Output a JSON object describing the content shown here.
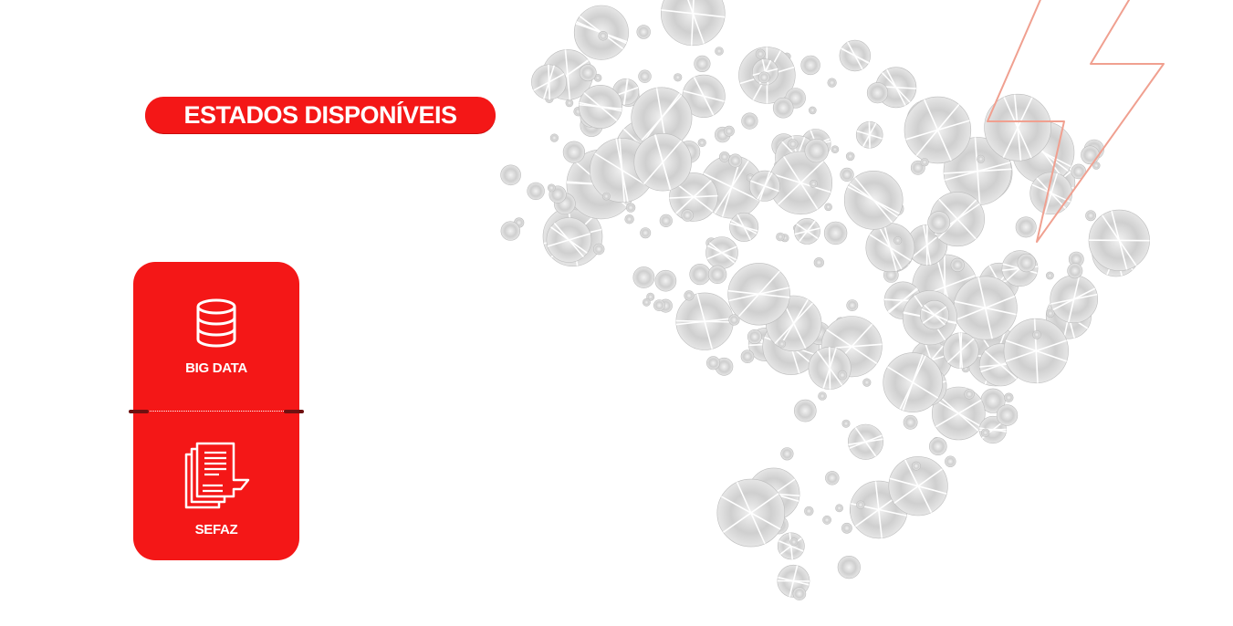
{
  "header": {
    "title": "ESTADOS DISPONÍVEIS"
  },
  "options": {
    "big_data": {
      "label": "BIG DATA",
      "icon": "database-icon"
    },
    "sefaz": {
      "label": "SEFAZ",
      "icon": "documents-icon"
    }
  },
  "colors": {
    "brand_red": "#f41717",
    "divider_cap": "#6e1010",
    "bolt_outline": "#f0a090",
    "map_fill": "#d4d4d4"
  }
}
